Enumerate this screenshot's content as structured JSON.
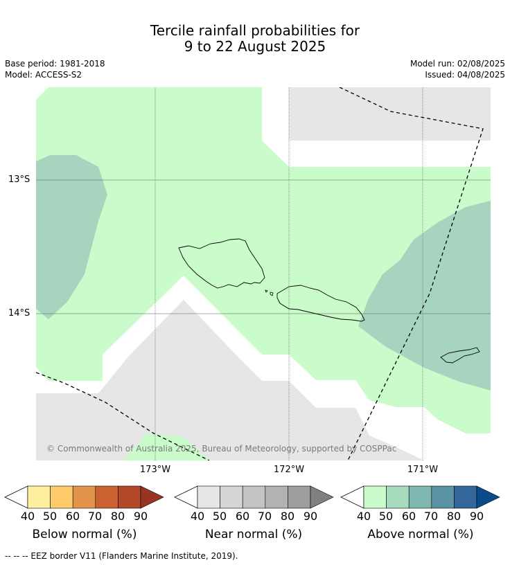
{
  "title": {
    "line1": "Tercile rainfall probabilities for",
    "line2": "9 to 22 August 2025"
  },
  "meta": {
    "base_period": "Base period: 1981-2018",
    "model": "Model: ACCESS-S2",
    "model_run": "Model run: 02/08/2025",
    "issued": "Issued: 04/08/2025"
  },
  "map": {
    "copyright": "© Commonwealth of Australia 2025, Bureau of Meteorology, supported by COSPPac",
    "lat_labels": [
      "13°S",
      "14°S"
    ],
    "lon_labels": [
      "173°W",
      "172°W",
      "171°W"
    ]
  },
  "legend": {
    "below": {
      "label": "Below normal (%)",
      "colors": [
        "#fff0a0",
        "#fdcb6a",
        "#e3934a",
        "#cc6232",
        "#b4482a",
        "#993322"
      ]
    },
    "near": {
      "label": "Near normal (%)",
      "colors": [
        "#e6e6e6",
        "#d5d5d5",
        "#c4c4c4",
        "#b2b2b2",
        "#9e9e9e",
        "#808080"
      ]
    },
    "above": {
      "label": "Above normal (%)",
      "colors": [
        "#c9fcca",
        "#a6dbbe",
        "#7fb8b0",
        "#5a93a3",
        "#336699",
        "#0c4b8a"
      ]
    },
    "ticks": [
      "40",
      "50",
      "60",
      "70",
      "80",
      "90"
    ]
  },
  "footnote": "--  --  -- EEZ border V11 (Flanders Marine Institute, 2019)."
}
